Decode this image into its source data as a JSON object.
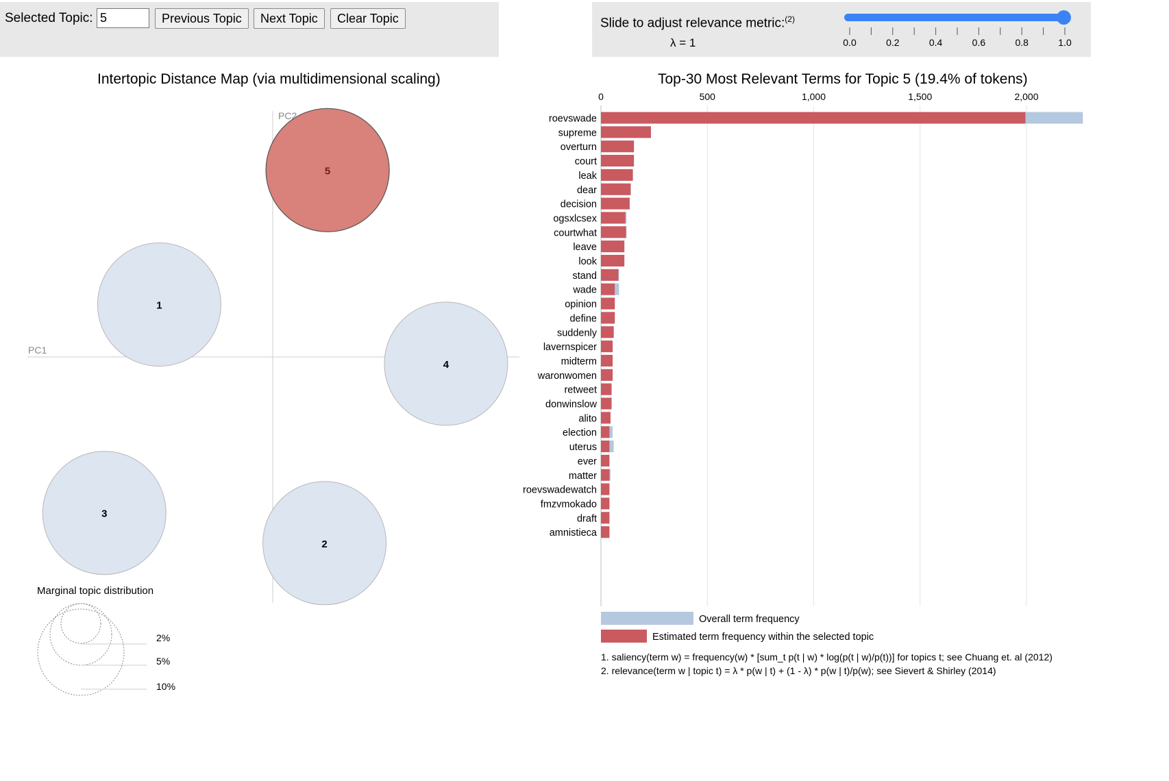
{
  "controls": {
    "selected_topic_label": "Selected Topic:",
    "selected_topic_value": "5",
    "previous_label": "Previous Topic",
    "next_label": "Next Topic",
    "clear_label": "Clear Topic"
  },
  "slider": {
    "label": "Slide to adjust relevance metric:",
    "label_note": "(2)",
    "lambda_text": "λ = 1",
    "value": 1.0,
    "tick_labels": [
      "0.0",
      "0.2",
      "0.4",
      "0.6",
      "0.8",
      "1.0"
    ],
    "track_color": "#3b82f6"
  },
  "colors": {
    "selected_topic": "#d9817b",
    "unselected_topic": "#dce5f0",
    "topic_term_bar": "#c95a60",
    "overall_bar": "#b4c8df",
    "axis": "#cccccc"
  },
  "chart_data": [
    {
      "type": "scatter",
      "title": "Intertopic Distance Map (via multidimensional scaling)",
      "xlabel": "PC1",
      "ylabel": "PC2",
      "grid": false,
      "selected_topic": 5,
      "topics": [
        {
          "id": 1,
          "x": -0.184,
          "y": 0.085
        },
        {
          "id": 2,
          "x": 0.084,
          "y": -0.302
        },
        {
          "id": 3,
          "x": -0.273,
          "y": -0.253
        },
        {
          "id": 4,
          "x": 0.281,
          "y": -0.011
        },
        {
          "id": 5,
          "x": 0.089,
          "y": 0.303
        }
      ],
      "marginal_distribution": {
        "title": "Marginal topic distribution",
        "labels": [
          "2%",
          "5%",
          "10%"
        ]
      }
    },
    {
      "type": "bar",
      "orientation": "horizontal",
      "title": "Top-30 Most Relevant Terms for Topic 5 (19.4% of tokens)",
      "xlim": [
        0,
        2280
      ],
      "x_ticks": [
        "0",
        "500",
        "1,000",
        "1,500",
        "2,000"
      ],
      "x_tick_values": [
        0,
        500,
        1000,
        1500,
        2000
      ],
      "grid": true,
      "categories": [
        "roevswade",
        "supreme",
        "overturn",
        "court",
        "leak",
        "dear",
        "decision",
        "ogsxlcsex",
        "courtwhat",
        "leave",
        "look",
        "stand",
        "wade",
        "opinion",
        "define",
        "suddenly",
        "lavernspicer",
        "midterm",
        "waronwomen",
        "retweet",
        "donwinslow",
        "alito",
        "election",
        "uterus",
        "ever",
        "matter",
        "roevswadewatch",
        "fmzvmokado",
        "draft",
        "amnistieca"
      ],
      "series": [
        {
          "name": "Overall term frequency",
          "values": [
            2265,
            235,
            155,
            155,
            150,
            140,
            135,
            120,
            120,
            110,
            110,
            85,
            85,
            65,
            65,
            60,
            55,
            55,
            55,
            50,
            50,
            45,
            55,
            60,
            40,
            45,
            40,
            40,
            40,
            40
          ]
        },
        {
          "name": "Estimated term frequency within the selected topic",
          "values": [
            1995,
            235,
            155,
            155,
            150,
            140,
            135,
            115,
            118,
            110,
            110,
            82,
            65,
            65,
            65,
            60,
            55,
            55,
            55,
            50,
            50,
            45,
            40,
            40,
            40,
            40,
            40,
            40,
            40,
            40
          ]
        }
      ],
      "legend_position": "bottom",
      "footnotes": [
        "1. saliency(term w) = frequency(w) * [sum_t p(t | w) * log(p(t | w)/p(t))] for topics t; see Chuang et. al (2012)",
        "2. relevance(term w | topic t) = λ * p(w | t) + (1 - λ) * p(w | t)/p(w); see Sievert & Shirley (2014)"
      ]
    }
  ]
}
